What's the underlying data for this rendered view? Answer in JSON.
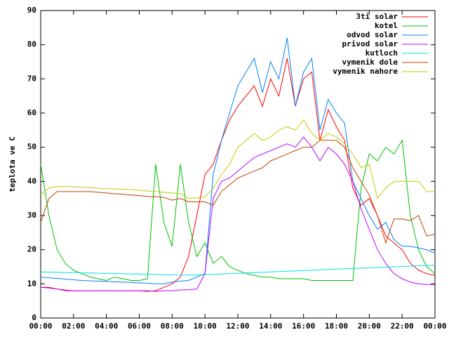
{
  "chart_data": {
    "type": "line",
    "y_label": "teplota ve C",
    "x": [
      0,
      0.5,
      1,
      1.5,
      2,
      2.5,
      3,
      3.5,
      4,
      4.5,
      5,
      5.5,
      6,
      6.5,
      7,
      7.5,
      8,
      8.5,
      9,
      9.5,
      10,
      10.5,
      11,
      11.5,
      12,
      12.5,
      13,
      13.5,
      14,
      14.5,
      15,
      15.5,
      16,
      16.5,
      17,
      17.5,
      18,
      18.5,
      19,
      19.5,
      20,
      20.5,
      21,
      21.5,
      22,
      22.5,
      23,
      23.5,
      24
    ],
    "xlim": [
      0,
      24
    ],
    "xticks": [
      {
        "value": 0,
        "label": "00:00"
      },
      {
        "value": 2,
        "label": "02:00"
      },
      {
        "value": 4,
        "label": "04:00"
      },
      {
        "value": 6,
        "label": "06:00"
      },
      {
        "value": 8,
        "label": "08:00"
      },
      {
        "value": 10,
        "label": "10:00"
      },
      {
        "value": 12,
        "label": "12:00"
      },
      {
        "value": 14,
        "label": "14:00"
      },
      {
        "value": 16,
        "label": "16:00"
      },
      {
        "value": 18,
        "label": "18:00"
      },
      {
        "value": 20,
        "label": "20:00"
      },
      {
        "value": 22,
        "label": "22:00"
      },
      {
        "value": 24,
        "label": "00:00"
      }
    ],
    "ylim": [
      0,
      90
    ],
    "yticks": [
      0,
      10,
      20,
      30,
      40,
      50,
      60,
      70,
      80,
      90
    ],
    "legend": "top-right",
    "series": [
      {
        "name": "3ti solar",
        "color": "#ff0000",
        "values": [
          9,
          9,
          8.5,
          8.2,
          8,
          8,
          8,
          8,
          8,
          8,
          8,
          8,
          8,
          7.8,
          8,
          9,
          10,
          12,
          18,
          30,
          42,
          45,
          52,
          58,
          62,
          65,
          68,
          62,
          70,
          65,
          76,
          62,
          70,
          72,
          52,
          61,
          56,
          52,
          38,
          33,
          35,
          30,
          24,
          22,
          20,
          16,
          14,
          13,
          12.5
        ]
      },
      {
        "name": "kotel",
        "color": "#00c000",
        "values": [
          45,
          30,
          20,
          16,
          14,
          13,
          12,
          11.5,
          11,
          12,
          11.5,
          11,
          11,
          11.5,
          45,
          28,
          21,
          45,
          28,
          18,
          22,
          16,
          18,
          15,
          14,
          13,
          12.5,
          12,
          12,
          11.5,
          11.5,
          11.5,
          11.5,
          11,
          11,
          11,
          11,
          11,
          11,
          38,
          48,
          46,
          50,
          48,
          52,
          30,
          20,
          15,
          13
        ]
      },
      {
        "name": "odvod solar",
        "color": "#0080ff",
        "values": [
          12,
          11.8,
          11.6,
          11.4,
          11.2,
          11,
          10.9,
          10.8,
          10.7,
          10.6,
          10.5,
          10.4,
          10.3,
          10.2,
          10,
          10,
          10.5,
          10.8,
          11,
          12,
          13,
          42,
          52,
          60,
          68,
          72,
          76,
          66,
          75,
          70,
          82,
          62,
          72,
          76,
          55,
          64,
          60,
          57,
          40,
          35,
          30,
          26,
          28,
          23,
          21,
          21,
          20.5,
          20,
          19
        ]
      },
      {
        "name": "privod solar",
        "color": "#c000ff",
        "values": [
          9,
          8.8,
          8.5,
          8,
          8,
          8,
          8,
          8,
          8,
          8,
          8,
          8,
          8,
          8,
          7.8,
          8,
          8,
          8.2,
          8.3,
          8.5,
          13,
          35,
          40,
          41,
          43,
          45,
          47,
          48,
          49,
          50,
          51,
          50,
          53,
          50,
          46,
          50,
          48,
          45,
          40,
          32,
          26,
          20,
          16,
          13,
          11.5,
          10.5,
          10,
          9.8,
          9.8
        ]
      },
      {
        "name": "kutloch",
        "color": "#00e0e0",
        "values": [
          13.5,
          13.4,
          13.4,
          13.3,
          13.3,
          13.2,
          13.2,
          13.1,
          13.1,
          13,
          13,
          12.9,
          12.9,
          12.8,
          12.8,
          12.7,
          12.6,
          12.6,
          12.6,
          12.6,
          12.7,
          12.8,
          12.9,
          13,
          13.1,
          13.2,
          13.3,
          13.4,
          13.5,
          13.6,
          13.7,
          13.8,
          13.9,
          14,
          14.1,
          14.2,
          14.3,
          14.4,
          14.5,
          14.6,
          14.7,
          14.8,
          14.9,
          15,
          15.1,
          15.2,
          15.3,
          15.4,
          15.5
        ]
      },
      {
        "name": "vymenik dole",
        "color": "#c04000",
        "values": [
          28,
          35,
          37,
          37,
          37,
          37,
          37,
          36.8,
          36.6,
          36.4,
          36.2,
          36,
          35.8,
          35.6,
          35.5,
          35.3,
          34.5,
          35,
          34,
          34,
          34,
          33,
          37,
          39,
          41,
          42,
          43,
          44,
          46,
          47,
          48,
          49,
          50,
          50,
          52,
          52,
          52,
          50,
          44,
          40,
          36,
          30,
          22,
          29,
          29,
          28.5,
          30,
          24,
          24.5
        ]
      },
      {
        "name": "vymenik nahore",
        "color": "#c8c800",
        "values": [
          36,
          38,
          38.5,
          38.5,
          38.4,
          38.3,
          38.2,
          38,
          37.9,
          37.8,
          37.7,
          37.6,
          37.4,
          37.2,
          37,
          36.8,
          36.6,
          36.5,
          35,
          35.2,
          35.5,
          38,
          42,
          45,
          50,
          52,
          54,
          52,
          53,
          55,
          56,
          55,
          58,
          54,
          52,
          54,
          53,
          51,
          48,
          44,
          45,
          35,
          38,
          40,
          40,
          40,
          40,
          37,
          37
        ]
      }
    ]
  }
}
